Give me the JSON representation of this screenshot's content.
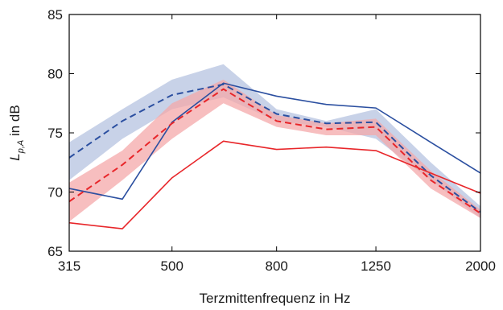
{
  "chart_data": {
    "type": "line",
    "title": "",
    "xlabel": "Terzmittenfrequenz in Hz",
    "ylabel": {
      "symbol": "L",
      "subscript": "p,A",
      "suffix": " in dB"
    },
    "x": [
      315,
      400,
      500,
      630,
      800,
      1000,
      1250,
      1600,
      2000
    ],
    "x_tick_labels": [
      "315",
      "500",
      "800",
      "1250",
      "2000"
    ],
    "x_tick_values": [
      315,
      500,
      800,
      1250,
      2000
    ],
    "x_scale": "log",
    "xlim": [
      315,
      2000
    ],
    "ylim": [
      65,
      85
    ],
    "y_ticks": [
      65,
      70,
      75,
      80,
      85
    ],
    "grid": false,
    "legend": "none",
    "colors": {
      "blue_line": "#2b4fa0",
      "blue_band": "#b6c3e0",
      "red_line": "#e8262a",
      "red_band": "#f4a8aa"
    },
    "bands": [
      {
        "color_key": "blue_band",
        "lower": [
          71.0,
          74.5,
          77.0,
          78.0,
          76.0,
          75.5,
          74.5,
          71.0,
          67.8
        ],
        "upper": [
          74.2,
          77.0,
          79.5,
          80.8,
          77.0,
          76.0,
          77.0,
          72.5,
          68.8
        ]
      },
      {
        "color_key": "red_band",
        "lower": [
          67.5,
          71.0,
          74.5,
          77.5,
          75.5,
          74.8,
          74.8,
          70.3,
          67.8
        ],
        "upper": [
          70.8,
          73.5,
          77.5,
          79.5,
          76.5,
          75.8,
          76.2,
          71.8,
          68.5
        ]
      }
    ],
    "series": [
      {
        "color_key": "blue_line",
        "style": "dashed",
        "values": [
          72.9,
          76.0,
          78.2,
          79.1,
          76.6,
          75.8,
          75.9,
          71.4,
          68.3
        ]
      },
      {
        "color_key": "blue_line",
        "style": "solid",
        "values": [
          70.3,
          69.4,
          75.9,
          79.2,
          78.1,
          77.4,
          77.1,
          74.2,
          71.6
        ]
      },
      {
        "color_key": "red_line",
        "style": "dashed",
        "values": [
          69.2,
          72.3,
          75.8,
          78.7,
          76.0,
          75.3,
          75.5,
          71.0,
          68.2
        ]
      },
      {
        "color_key": "red_line",
        "style": "solid",
        "values": [
          67.4,
          66.9,
          71.2,
          74.3,
          73.6,
          73.8,
          73.5,
          71.6,
          69.9
        ]
      }
    ]
  }
}
